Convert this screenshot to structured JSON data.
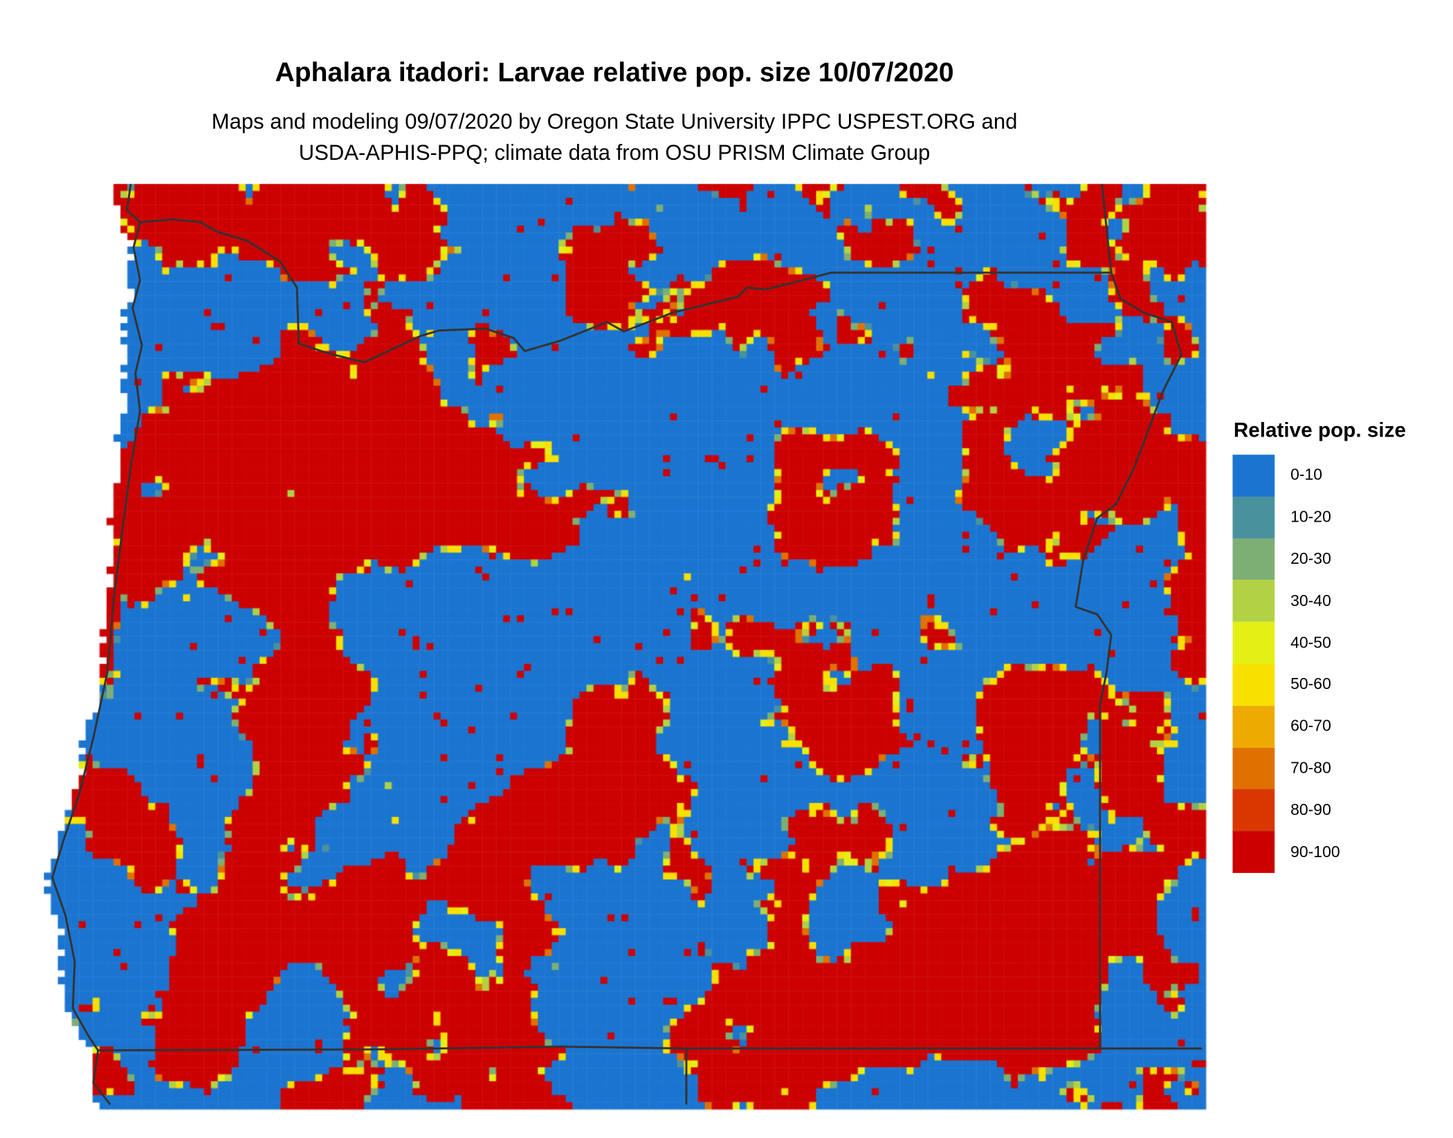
{
  "title": "Aphalara itadori: Larvae relative pop. size 10/07/2020",
  "subtitle_line1": "Maps and modeling 09/07/2020 by Oregon State University IPPC USPEST.ORG and",
  "subtitle_line2": "USDA-APHIS-PPQ; climate data from OSU PRISM Climate Group",
  "legend": {
    "title": "Relative pop. size",
    "items": [
      {
        "label": "0-10",
        "color": "#1B75D0"
      },
      {
        "label": "10-20",
        "color": "#4A919E"
      },
      {
        "label": "20-30",
        "color": "#7DAF74"
      },
      {
        "label": "30-40",
        "color": "#B2D144"
      },
      {
        "label": "40-50",
        "color": "#E4EF16"
      },
      {
        "label": "50-60",
        "color": "#F8E000"
      },
      {
        "label": "60-70",
        "color": "#EDAA00"
      },
      {
        "label": "70-80",
        "color": "#E07100"
      },
      {
        "label": "80-90",
        "color": "#D83800"
      },
      {
        "label": "90-100",
        "color": "#CC0000"
      }
    ]
  },
  "border_color": "#333333"
}
